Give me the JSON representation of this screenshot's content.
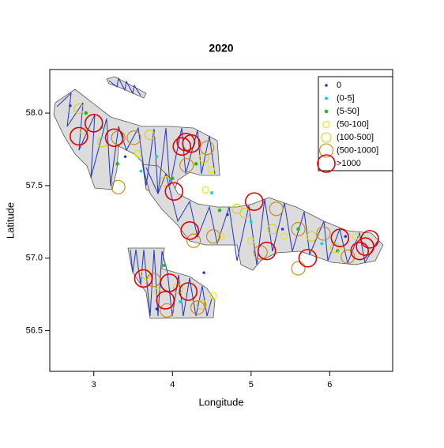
{
  "chart_data": {
    "type": "scatter",
    "title": "2020",
    "x_label": "Longitude",
    "y_label": "Latitude",
    "xlim": [
      2.44,
      6.8
    ],
    "ylim": [
      56.22,
      58.3
    ],
    "xticks": [
      3,
      4,
      5,
      6
    ],
    "yticks": [
      56.5,
      {
        "value": 57,
        "label": "57.0"
      },
      57.5,
      {
        "value": 58,
        "label": "58.0"
      }
    ],
    "legend": "top-right",
    "series": [
      {
        "name": "0",
        "color": "#2233cc",
        "x": [
          2.7,
          3.4,
          4.7,
          5.4,
          6.2,
          3.8,
          4.4
        ],
        "y": [
          58.05,
          57.7,
          57.3,
          57.2,
          57.15,
          56.65,
          56.9
        ]
      },
      {
        "name": "(0-5]",
        "color": "#00d8e8",
        "x": [
          3.1,
          3.8,
          4.5,
          5.0,
          5.9,
          4.1,
          3.6
        ],
        "y": [
          57.9,
          57.7,
          57.45,
          57.25,
          57.1,
          56.7,
          57.6
        ]
      },
      {
        "name": "(5-50]",
        "color": "#22bb22",
        "x": [
          3.3,
          4.0,
          4.6,
          5.6,
          6.1,
          3.9,
          4.3,
          2.9
        ],
        "y": [
          57.65,
          57.55,
          57.33,
          57.2,
          57.05,
          56.95,
          57.65,
          58.0
        ]
      },
      {
        "name": "(50-100]",
        "color": "#e6e600",
        "x": [
          2.86,
          3.56,
          4.49,
          4.42,
          4.62,
          5.0,
          5.42,
          6.33,
          4.52,
          3.81
        ],
        "y": [
          57.88,
          57.72,
          57.61,
          57.47,
          57.15,
          57.12,
          57.15,
          57.15,
          56.74,
          56.77
        ]
      },
      {
        "name": "(100-500]",
        "color": "#e0d000",
        "x": [
          2.81,
          3.11,
          3.71,
          4.4,
          3.91,
          4.82,
          4.92,
          5.27,
          5.77,
          6.07,
          4.37,
          3.66,
          4.07
        ],
        "y": [
          58.03,
          57.8,
          57.85,
          57.69,
          57.53,
          57.34,
          57.31,
          57.2,
          57.15,
          57.07,
          56.68,
          56.89,
          56.79
        ]
      },
      {
        "name": "(500-1000]",
        "color": "#c8860a",
        "x": [
          3.31,
          3.51,
          4.44,
          4.18,
          3.31,
          5.32,
          5.6,
          5.92,
          5.12,
          5.6,
          6.23,
          4.52,
          4.27,
          3.76,
          4.32,
          3.93
        ],
        "y": [
          57.83,
          57.83,
          57.76,
          57.64,
          57.49,
          57.34,
          57.2,
          57.17,
          57.04,
          56.93,
          57.01,
          57.15,
          57.12,
          56.85,
          56.66,
          56.64
        ]
      },
      {
        "name": ">1000",
        "color": "#e00000",
        "x": [
          3.0,
          2.81,
          3.26,
          4.12,
          4.17,
          4.24,
          4.02,
          4.22,
          5.04,
          5.2,
          5.72,
          6.13,
          6.51,
          6.45,
          6.38,
          4.2,
          3.96,
          3.63,
          3.91
        ],
        "y": [
          57.93,
          57.84,
          57.83,
          57.77,
          57.8,
          57.79,
          57.46,
          57.19,
          57.39,
          57.05,
          57.0,
          57.14,
          57.13,
          57.08,
          57.05,
          56.77,
          56.83,
          56.86,
          56.71
        ]
      }
    ]
  }
}
